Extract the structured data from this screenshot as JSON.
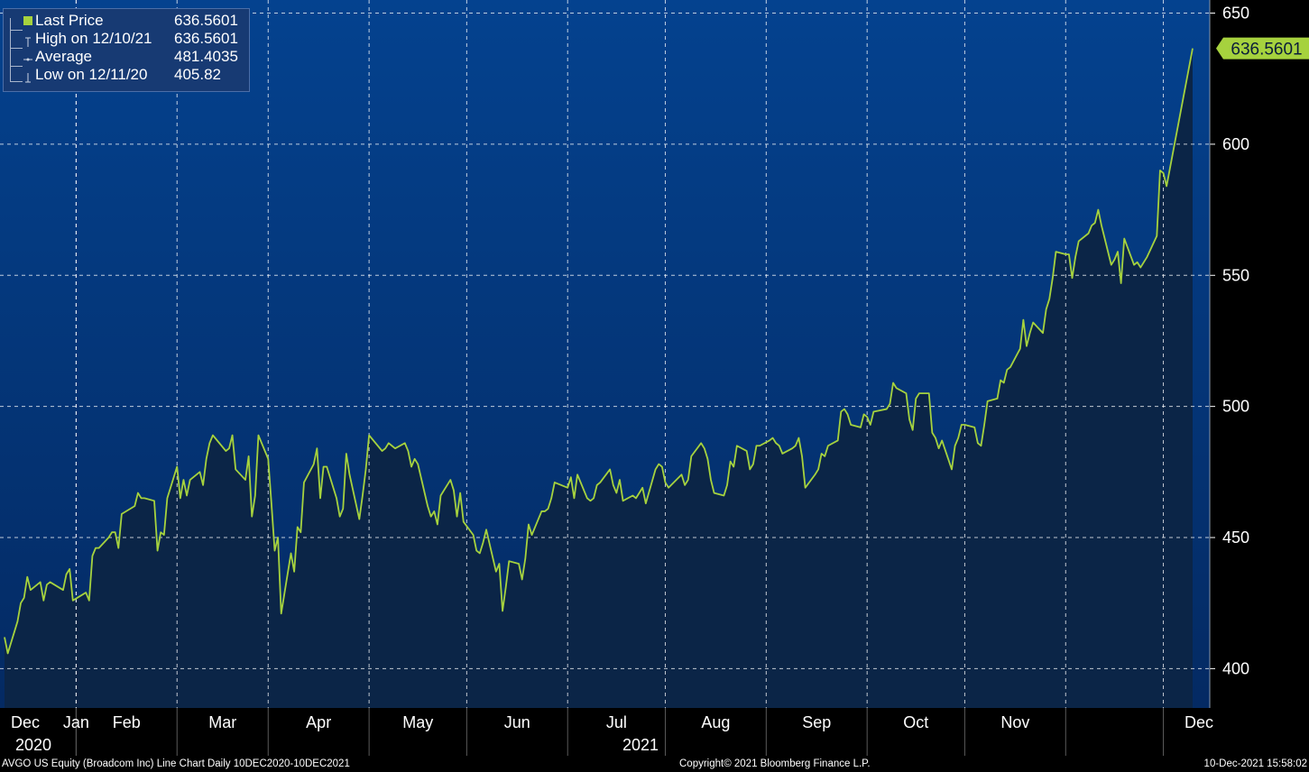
{
  "chart_data": {
    "type": "area",
    "ticker": "AVGO US Equity",
    "ylim": [
      385,
      655
    ],
    "y_ticks": [
      400,
      450,
      500,
      550,
      600,
      650
    ],
    "grid": true,
    "x": {
      "start": "2020-12-10",
      "end": "2021-12-10",
      "month_labels": [
        "Dec",
        "Jan",
        "Feb",
        "Mar",
        "Apr",
        "May",
        "Jun",
        "Jul",
        "Aug",
        "Sep",
        "Oct",
        "Nov",
        "Dec"
      ],
      "year_labels": [
        "2020",
        "2021"
      ]
    },
    "last_price_label": "636.5601",
    "series": [
      {
        "name": "Last Price",
        "color": "#a6d23e",
        "points": [
          [
            "2020-12-10",
            412.0
          ],
          [
            "2020-12-11",
            405.82
          ],
          [
            "2020-12-14",
            418.0
          ],
          [
            "2020-12-15",
            425.0
          ],
          [
            "2020-12-16",
            427.0
          ],
          [
            "2020-12-17",
            435.0
          ],
          [
            "2020-12-18",
            430.0
          ],
          [
            "2020-12-21",
            433.0
          ],
          [
            "2020-12-22",
            426.0
          ],
          [
            "2020-12-23",
            432.0
          ],
          [
            "2020-12-24",
            433.0
          ],
          [
            "2020-12-28",
            430.0
          ],
          [
            "2020-12-29",
            436.0
          ],
          [
            "2020-12-30",
            438.0
          ],
          [
            "2020-12-31",
            426.0
          ],
          [
            "2021-01-04",
            429.0
          ],
          [
            "2021-01-05",
            426.0
          ],
          [
            "2021-01-06",
            443.0
          ],
          [
            "2021-01-07",
            446.0
          ],
          [
            "2021-01-08",
            446.0
          ],
          [
            "2021-01-11",
            450.0
          ],
          [
            "2021-01-12",
            452.0
          ],
          [
            "2021-01-13",
            452.0
          ],
          [
            "2021-01-14",
            446.0
          ],
          [
            "2021-01-15",
            459.0
          ],
          [
            "2021-01-19",
            462.0
          ],
          [
            "2021-01-20",
            467.0
          ],
          [
            "2021-01-21",
            465.0
          ],
          [
            "2021-01-22",
            465.0
          ],
          [
            "2021-01-25",
            464.0
          ],
          [
            "2021-01-26",
            445.0
          ],
          [
            "2021-01-27",
            452.0
          ],
          [
            "2021-01-28",
            451.0
          ],
          [
            "2021-01-29",
            465.0
          ],
          [
            "2021-02-01",
            477.0
          ],
          [
            "2021-02-02",
            465.0
          ],
          [
            "2021-02-03",
            472.0
          ],
          [
            "2021-02-04",
            466.0
          ],
          [
            "2021-02-05",
            472.0
          ],
          [
            "2021-02-08",
            475.0
          ],
          [
            "2021-02-09",
            470.0
          ],
          [
            "2021-02-10",
            480.0
          ],
          [
            "2021-02-11",
            486.0
          ],
          [
            "2021-02-12",
            489.0
          ],
          [
            "2021-02-16",
            483.0
          ],
          [
            "2021-02-17",
            484.0
          ],
          [
            "2021-02-18",
            489.0
          ],
          [
            "2021-02-19",
            476.0
          ],
          [
            "2021-02-22",
            472.0
          ],
          [
            "2021-02-23",
            481.0
          ],
          [
            "2021-02-24",
            458.0
          ],
          [
            "2021-02-25",
            466.0
          ],
          [
            "2021-02-26",
            489.0
          ],
          [
            "2021-03-01",
            480.0
          ],
          [
            "2021-03-02",
            463.0
          ],
          [
            "2021-03-03",
            445.0
          ],
          [
            "2021-03-04",
            450.0
          ],
          [
            "2021-03-05",
            421.0
          ],
          [
            "2021-03-08",
            444.0
          ],
          [
            "2021-03-09",
            437.0
          ],
          [
            "2021-03-10",
            454.0
          ],
          [
            "2021-03-11",
            452.0
          ],
          [
            "2021-03-12",
            471.0
          ],
          [
            "2021-03-15",
            478.0
          ],
          [
            "2021-03-16",
            484.0
          ],
          [
            "2021-03-17",
            465.0
          ],
          [
            "2021-03-18",
            477.0
          ],
          [
            "2021-03-19",
            477.0
          ],
          [
            "2021-03-22",
            465.0
          ],
          [
            "2021-03-23",
            458.0
          ],
          [
            "2021-03-24",
            461.0
          ],
          [
            "2021-03-25",
            482.0
          ],
          [
            "2021-03-26",
            474.0
          ],
          [
            "2021-03-29",
            457.0
          ],
          [
            "2021-03-30",
            466.0
          ],
          [
            "2021-03-31",
            476.0
          ],
          [
            "2021-04-01",
            489.0
          ],
          [
            "2021-04-05",
            483.0
          ],
          [
            "2021-04-06",
            484.0
          ],
          [
            "2021-04-07",
            486.0
          ],
          [
            "2021-04-08",
            485.0
          ],
          [
            "2021-04-09",
            484.0
          ],
          [
            "2021-04-12",
            486.0
          ],
          [
            "2021-04-13",
            483.0
          ],
          [
            "2021-04-14",
            477.0
          ],
          [
            "2021-04-15",
            480.0
          ],
          [
            "2021-04-16",
            478.0
          ],
          [
            "2021-04-19",
            462.0
          ],
          [
            "2021-04-20",
            458.0
          ],
          [
            "2021-04-21",
            460.0
          ],
          [
            "2021-04-22",
            455.0
          ],
          [
            "2021-04-23",
            466.0
          ],
          [
            "2021-04-26",
            472.0
          ],
          [
            "2021-04-27",
            468.0
          ],
          [
            "2021-04-28",
            458.0
          ],
          [
            "2021-04-29",
            467.0
          ],
          [
            "2021-04-30",
            456.0
          ],
          [
            "2021-05-03",
            451.0
          ],
          [
            "2021-05-04",
            445.0
          ],
          [
            "2021-05-05",
            444.0
          ],
          [
            "2021-05-06",
            448.0
          ],
          [
            "2021-05-07",
            453.0
          ],
          [
            "2021-05-10",
            437.0
          ],
          [
            "2021-05-11",
            440.0
          ],
          [
            "2021-05-12",
            422.0
          ],
          [
            "2021-05-13",
            431.0
          ],
          [
            "2021-05-14",
            441.0
          ],
          [
            "2021-05-17",
            440.0
          ],
          [
            "2021-05-18",
            434.0
          ],
          [
            "2021-05-19",
            442.0
          ],
          [
            "2021-05-20",
            455.0
          ],
          [
            "2021-05-21",
            451.0
          ],
          [
            "2021-05-24",
            460.0
          ],
          [
            "2021-05-25",
            460.0
          ],
          [
            "2021-05-26",
            461.0
          ],
          [
            "2021-05-27",
            465.0
          ],
          [
            "2021-05-28",
            471.0
          ],
          [
            "2021-06-01",
            469.0
          ],
          [
            "2021-06-02",
            473.0
          ],
          [
            "2021-06-03",
            465.0
          ],
          [
            "2021-06-04",
            474.0
          ],
          [
            "2021-06-07",
            465.0
          ],
          [
            "2021-06-08",
            464.0
          ],
          [
            "2021-06-09",
            465.0
          ],
          [
            "2021-06-10",
            470.0
          ],
          [
            "2021-06-11",
            471.0
          ],
          [
            "2021-06-14",
            476.0
          ],
          [
            "2021-06-15",
            470.0
          ],
          [
            "2021-06-16",
            467.0
          ],
          [
            "2021-06-17",
            472.0
          ],
          [
            "2021-06-18",
            464.0
          ],
          [
            "2021-06-21",
            466.0
          ],
          [
            "2021-06-22",
            465.0
          ],
          [
            "2021-06-23",
            467.0
          ],
          [
            "2021-06-24",
            469.0
          ],
          [
            "2021-06-25",
            463.0
          ],
          [
            "2021-06-28",
            476.0
          ],
          [
            "2021-06-29",
            478.0
          ],
          [
            "2021-06-30",
            477.0
          ],
          [
            "2021-07-01",
            471.0
          ],
          [
            "2021-07-02",
            469.0
          ],
          [
            "2021-07-06",
            474.0
          ],
          [
            "2021-07-07",
            470.0
          ],
          [
            "2021-07-08",
            472.0
          ],
          [
            "2021-07-09",
            481.0
          ],
          [
            "2021-07-12",
            486.0
          ],
          [
            "2021-07-13",
            484.0
          ],
          [
            "2021-07-14",
            480.0
          ],
          [
            "2021-07-15",
            472.0
          ],
          [
            "2021-07-16",
            467.0
          ],
          [
            "2021-07-19",
            466.0
          ],
          [
            "2021-07-20",
            470.0
          ],
          [
            "2021-07-21",
            479.0
          ],
          [
            "2021-07-22",
            477.0
          ],
          [
            "2021-07-23",
            485.0
          ],
          [
            "2021-07-26",
            483.0
          ],
          [
            "2021-07-27",
            476.0
          ],
          [
            "2021-07-28",
            478.0
          ],
          [
            "2021-07-29",
            485.0
          ],
          [
            "2021-07-30",
            485.0
          ],
          [
            "2021-08-02",
            487.0
          ],
          [
            "2021-08-03",
            488.0
          ],
          [
            "2021-08-04",
            486.0
          ],
          [
            "2021-08-05",
            485.0
          ],
          [
            "2021-08-06",
            482.0
          ],
          [
            "2021-08-09",
            484.0
          ],
          [
            "2021-08-10",
            485.0
          ],
          [
            "2021-08-11",
            488.0
          ],
          [
            "2021-08-12",
            481.0
          ],
          [
            "2021-08-13",
            469.0
          ],
          [
            "2021-08-16",
            474.0
          ],
          [
            "2021-08-17",
            476.0
          ],
          [
            "2021-08-18",
            482.0
          ],
          [
            "2021-08-19",
            481.0
          ],
          [
            "2021-08-20",
            485.0
          ],
          [
            "2021-08-23",
            487.0
          ],
          [
            "2021-08-24",
            498.0
          ],
          [
            "2021-08-25",
            499.0
          ],
          [
            "2021-08-26",
            497.0
          ],
          [
            "2021-08-27",
            493.0
          ],
          [
            "2021-08-30",
            492.0
          ],
          [
            "2021-08-31",
            497.0
          ],
          [
            "2021-09-01",
            496.0
          ],
          [
            "2021-09-02",
            493.0
          ],
          [
            "2021-09-03",
            498.0
          ],
          [
            "2021-09-07",
            499.0
          ],
          [
            "2021-09-08",
            501.0
          ],
          [
            "2021-09-09",
            509.0
          ],
          [
            "2021-09-10",
            507.0
          ],
          [
            "2021-09-13",
            505.0
          ],
          [
            "2021-09-14",
            495.0
          ],
          [
            "2021-09-15",
            491.0
          ],
          [
            "2021-09-16",
            503.0
          ],
          [
            "2021-09-17",
            505.0
          ],
          [
            "2021-09-20",
            505.0
          ],
          [
            "2021-09-21",
            490.0
          ],
          [
            "2021-09-22",
            488.0
          ],
          [
            "2021-09-23",
            484.0
          ],
          [
            "2021-09-24",
            487.0
          ],
          [
            "2021-09-27",
            476.0
          ],
          [
            "2021-09-28",
            485.0
          ],
          [
            "2021-09-29",
            488.0
          ],
          [
            "2021-09-30",
            493.0
          ],
          [
            "2021-10-01",
            493.0
          ],
          [
            "2021-10-04",
            492.0
          ],
          [
            "2021-10-05",
            486.0
          ],
          [
            "2021-10-06",
            485.0
          ],
          [
            "2021-10-07",
            493.0
          ],
          [
            "2021-10-08",
            502.0
          ],
          [
            "2021-10-11",
            503.0
          ],
          [
            "2021-10-12",
            510.0
          ],
          [
            "2021-10-13",
            509.0
          ],
          [
            "2021-10-14",
            514.0
          ],
          [
            "2021-10-15",
            515.0
          ],
          [
            "2021-10-18",
            522.0
          ],
          [
            "2021-10-19",
            533.0
          ],
          [
            "2021-10-20",
            523.0
          ],
          [
            "2021-10-21",
            528.0
          ],
          [
            "2021-10-22",
            532.0
          ],
          [
            "2021-10-25",
            528.0
          ],
          [
            "2021-10-26",
            537.0
          ],
          [
            "2021-10-27",
            541.0
          ],
          [
            "2021-10-28",
            549.0
          ],
          [
            "2021-10-29",
            559.0
          ],
          [
            "2021-11-01",
            558.0
          ],
          [
            "2021-11-02",
            558.0
          ],
          [
            "2021-11-03",
            549.0
          ],
          [
            "2021-11-04",
            557.0
          ],
          [
            "2021-11-05",
            563.0
          ],
          [
            "2021-11-08",
            566.0
          ],
          [
            "2021-11-09",
            569.0
          ],
          [
            "2021-11-10",
            570.0
          ],
          [
            "2021-11-11",
            575.0
          ],
          [
            "2021-11-12",
            569.0
          ],
          [
            "2021-11-15",
            554.0
          ],
          [
            "2021-11-16",
            556.0
          ],
          [
            "2021-11-17",
            559.0
          ],
          [
            "2021-11-18",
            547.0
          ],
          [
            "2021-11-19",
            564.0
          ],
          [
            "2021-11-22",
            554.0
          ],
          [
            "2021-11-23",
            555.0
          ],
          [
            "2021-11-24",
            553.0
          ],
          [
            "2021-11-26",
            557.0
          ],
          [
            "2021-11-29",
            565.0
          ],
          [
            "2021-11-30",
            590.0
          ],
          [
            "2021-12-01",
            589.0
          ],
          [
            "2021-12-02",
            584.0
          ],
          [
            "2021-12-10",
            636.5601
          ]
        ]
      }
    ]
  },
  "legend": {
    "rows": [
      {
        "label": "Last Price",
        "value": "636.5601",
        "marker": "square"
      },
      {
        "label": "High on 12/10/21",
        "value": "636.5601",
        "marker": "high"
      },
      {
        "label": "Average",
        "value": "481.4035",
        "marker": "average"
      },
      {
        "label": "Low on 12/11/20",
        "value": "405.82",
        "marker": "low"
      }
    ]
  },
  "footer": {
    "description": "AVGO US Equity (Broadcom Inc) Line Chart  Daily 10DEC2020-10DEC2021",
    "copyright": "Copyright© 2021 Bloomberg Finance L.P.",
    "timestamp": "10-Dec-2021 15:58:02"
  },
  "colors": {
    "background_top": "#04428f",
    "background_bottom": "#042a63",
    "area_fill": "#0b2547",
    "line": "#a6d23e",
    "axis_band": "#000000",
    "grid": "#ffffff"
  }
}
